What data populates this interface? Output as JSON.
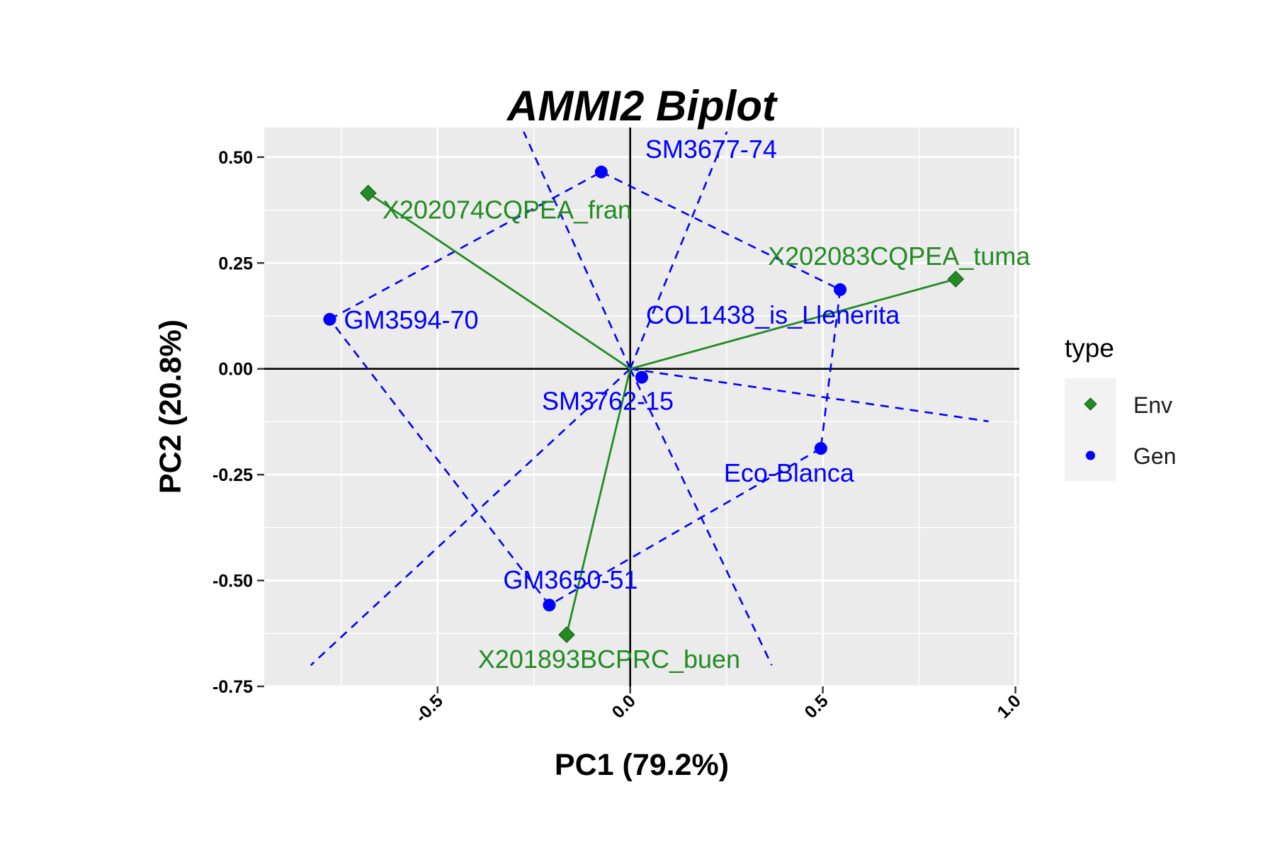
{
  "chart_data": {
    "type": "scatter",
    "title": "AMMI2 Biplot",
    "xlabel": "PC1 (79.2%)",
    "ylabel": "PC2 (20.8%)",
    "xlim": [
      -0.95,
      1.01
    ],
    "ylim": [
      -0.75,
      0.57
    ],
    "x_ticks": [
      -0.5,
      0.0,
      0.5,
      1.0
    ],
    "x_tick_labels": [
      "-0.5",
      "0.0",
      "0.5",
      "1.0"
    ],
    "y_ticks": [
      -0.75,
      -0.5,
      -0.25,
      0.0,
      0.25,
      0.5
    ],
    "y_tick_labels": [
      "-0.75",
      "-0.50",
      "-0.25",
      "0.00",
      "0.25",
      "0.50"
    ],
    "grid": true,
    "legend": {
      "title": "type",
      "position": "right",
      "entries": [
        {
          "label": "Env",
          "color": "#228B22",
          "shape": "diamond"
        },
        {
          "label": "Gen",
          "color": "#0000FF",
          "shape": "circle"
        }
      ]
    },
    "colors": {
      "env": "#228B22",
      "gen": "#0000FF",
      "panel": "#EBEBEB",
      "grid": "#FFFFFF"
    },
    "series": [
      {
        "name": "Env",
        "points": [
          {
            "label": "X202074CQPEA_fran",
            "x": -0.68,
            "y": 0.415
          },
          {
            "label": "X202083CQPEA_tuma",
            "x": 0.845,
            "y": 0.212
          },
          {
            "label": "X201893BCPRC_buen",
            "x": -0.165,
            "y": -0.628
          }
        ]
      },
      {
        "name": "Gen",
        "points": [
          {
            "label": "SM3677-74",
            "x": -0.075,
            "y": 0.465
          },
          {
            "label": "GM3594-70",
            "x": -0.78,
            "y": 0.117
          },
          {
            "label": "COL1438_is_Llenerita",
            "x": 0.545,
            "y": 0.187
          },
          {
            "label": "SM3762-15",
            "x": 0.03,
            "y": -0.02
          },
          {
            "label": "Eco-Blanca",
            "x": 0.495,
            "y": -0.188
          },
          {
            "label": "GM3650-51",
            "x": -0.21,
            "y": -0.558
          }
        ]
      }
    ]
  }
}
